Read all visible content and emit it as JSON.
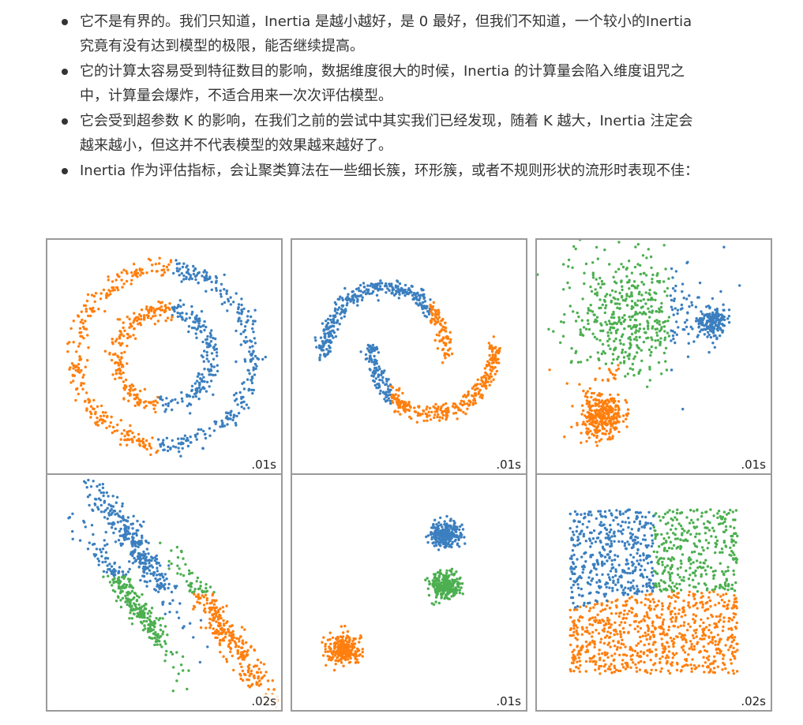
{
  "bullets": [
    {
      "line1": "它不是有界的。我们只知道，Inertia 是越小越好，是 0 最好，但我们不知道，一个较小的Inertia",
      "line2": "究竟有没有达到模型的极限，能否继续提高。"
    },
    {
      "line1": "它的计算太容易受到特征数目的影响，数据维度很大的时候，Inertia 的计算量会陷入维度诅咒之",
      "line2": "中，计算量会爆炸，不适合用来一次次评估模型。"
    },
    {
      "line1": "它会受到超参数 K 的影响，在我们之前的尝试中其实我们已经发现，随着 K 越大，Inertia 注定会",
      "line2": "越来越小，但这并不代表模型的效果越来越好了。"
    },
    {
      "line1": "Inertia 作为评估指标，会让聚类算法在一些细长簇，环形簇，或者不规则形状的流形时表现不佳：",
      "line2": ""
    }
  ],
  "colors": {
    "blue": "#3b7fbf",
    "orange": "#ff7f0e",
    "green": "#4caf50",
    "border": "#9a9a9a",
    "text": "#333333"
  },
  "panels": [
    {
      "name": "circles",
      "time": ".01s"
    },
    {
      "name": "moons",
      "time": ".01s"
    },
    {
      "name": "varied-blobs",
      "time": ".01s"
    },
    {
      "name": "anisotropic",
      "time": ".02s"
    },
    {
      "name": "blobs",
      "time": ".01s"
    },
    {
      "name": "uniform-square",
      "time": ".02s"
    }
  ]
}
